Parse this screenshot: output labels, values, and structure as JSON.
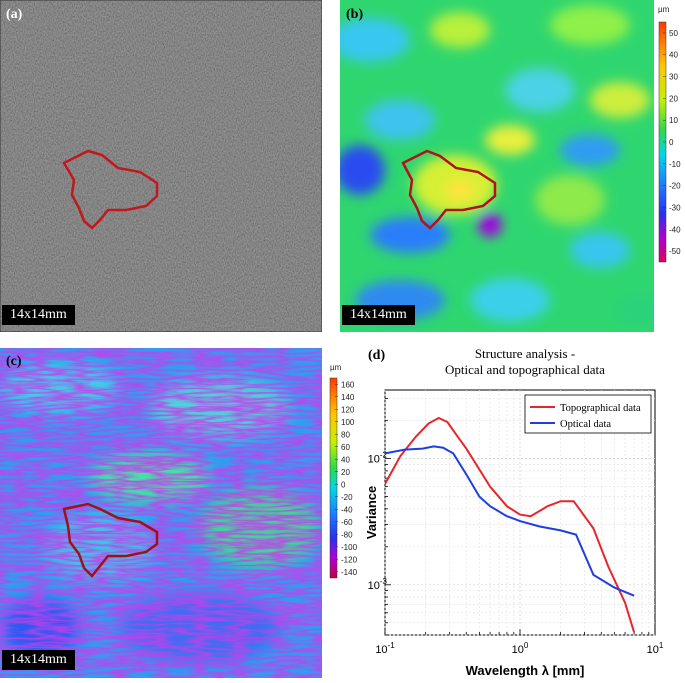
{
  "panels": {
    "a": {
      "label": "(a)",
      "scale": "14x14mm"
    },
    "b": {
      "label": "(b)",
      "scale": "14x14mm",
      "colorbar": {
        "unit": "µm",
        "ticks": [
          "50",
          "40",
          "30",
          "20",
          "10",
          "0",
          "-10",
          "-20",
          "-30",
          "-40",
          "-50"
        ]
      }
    },
    "c": {
      "label": "(c)",
      "scale": "14x14mm",
      "colorbar": {
        "unit": "µm",
        "ticks": [
          "160",
          "140",
          "120",
          "100",
          "80",
          "60",
          "40",
          "20",
          "0",
          "-20",
          "-40",
          "-60",
          "-80",
          "-100",
          "-120",
          "-140"
        ]
      }
    },
    "d": {
      "label": "(d)"
    }
  },
  "colors": {
    "topographical": "#e8262a",
    "optical": "#1f3ee0",
    "region_outline": "#c0181c"
  },
  "chart_data": {
    "type": "line",
    "title": "Structure analysis -\nOptical and topographical data",
    "title_lines": [
      "Structure analysis -",
      "Optical and topographical data"
    ],
    "xlabel": "Wavelength λ [mm]",
    "ylabel": "Variance",
    "xscale": "log",
    "yscale": "log",
    "xlim": [
      0.1,
      10
    ],
    "ylim": [
      0.0004,
      0.035
    ],
    "xticks": [
      {
        "v": 0.1,
        "label": "10-1"
      },
      {
        "v": 1,
        "label": "100"
      },
      {
        "v": 10,
        "label": "101"
      }
    ],
    "yticks": [
      {
        "v": 0.01,
        "label": "10-2"
      },
      {
        "v": 0.001,
        "label": "10-3"
      }
    ],
    "grid": true,
    "legend": "top-right",
    "series": [
      {
        "name": "Topographical data",
        "color": "#e8262a",
        "x": [
          0.1,
          0.13,
          0.17,
          0.21,
          0.25,
          0.29,
          0.33,
          0.4,
          0.5,
          0.6,
          0.8,
          1.0,
          1.2,
          1.6,
          2.0,
          2.5,
          3.5,
          4.5,
          6.0,
          7.0
        ],
        "y": [
          0.0063,
          0.0105,
          0.015,
          0.019,
          0.021,
          0.0195,
          0.016,
          0.012,
          0.0082,
          0.006,
          0.0042,
          0.0036,
          0.0035,
          0.0042,
          0.0046,
          0.0046,
          0.0028,
          0.0014,
          0.00072,
          0.00042
        ]
      },
      {
        "name": "Optical data",
        "color": "#1f3ee0",
        "x": [
          0.1,
          0.14,
          0.19,
          0.23,
          0.27,
          0.32,
          0.4,
          0.5,
          0.6,
          0.8,
          1.0,
          1.4,
          2.0,
          2.6,
          3.5,
          5.0,
          7.0
        ],
        "y": [
          0.011,
          0.0118,
          0.012,
          0.0125,
          0.0122,
          0.011,
          0.0075,
          0.005,
          0.0042,
          0.0035,
          0.0032,
          0.0029,
          0.0027,
          0.0025,
          0.0012,
          0.00095,
          0.00082
        ]
      }
    ]
  }
}
